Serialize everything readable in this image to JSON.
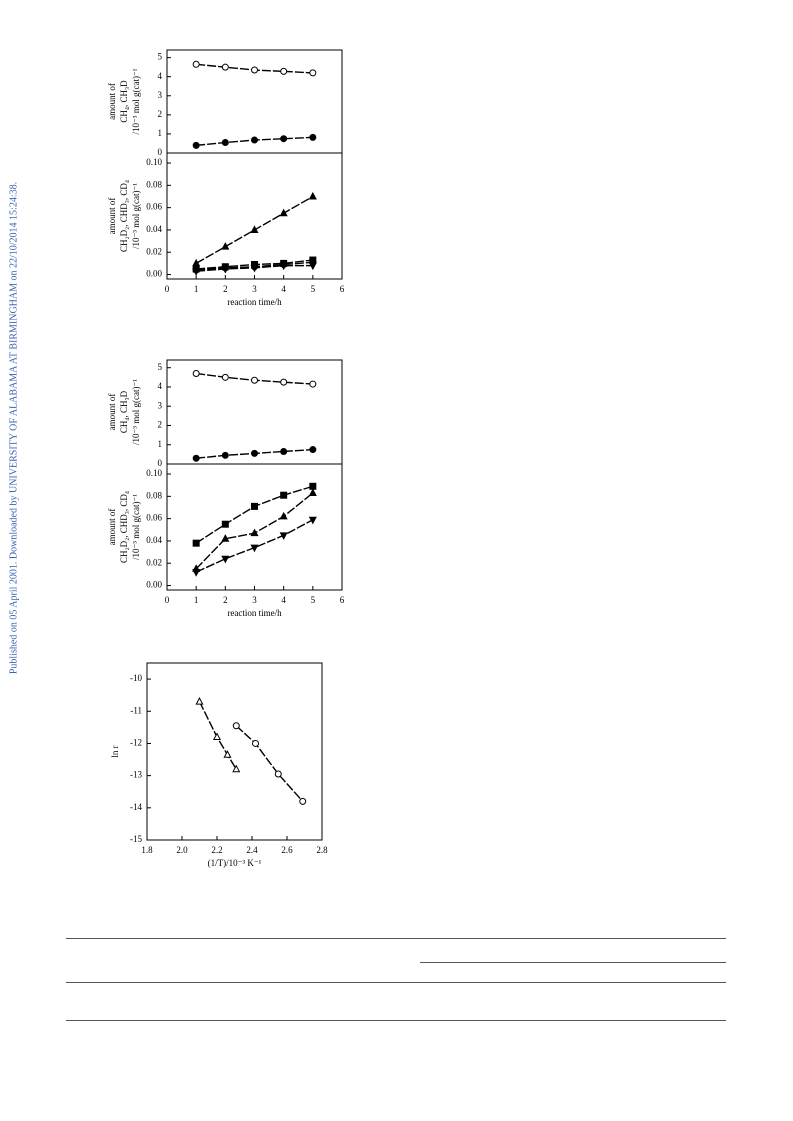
{
  "sidebar": "Published on 05 April 2001. Downloaded by UNIVERSITY OF ALABAMA AT BIRMINGHAM on 22/10/2014 15:24:38.",
  "chart_data": [
    {
      "type": "line",
      "ylabel": [
        "amount of",
        "CH₄, CH₃D",
        "/10⁻³ mol g(cat)⁻¹"
      ],
      "x": [
        1,
        2,
        3,
        4,
        5
      ],
      "xlim": [
        0,
        6
      ],
      "ylim": [
        0,
        5.4
      ],
      "yticks": [
        0,
        1,
        2,
        3,
        4,
        5
      ],
      "series": [
        {
          "marker": "open-circle",
          "color": "#000000",
          "values": [
            4.65,
            4.5,
            4.35,
            4.28,
            4.2
          ]
        },
        {
          "marker": "filled-circle",
          "color": "#000000",
          "values": [
            0.4,
            0.55,
            0.68,
            0.75,
            0.82
          ]
        }
      ]
    },
    {
      "type": "line",
      "ylabel": [
        "amount of",
        "CH₂D₂, CHD₃, CD₄",
        "/10⁻³ mol g(cat)⁻¹"
      ],
      "xlabel": "reaction time/h",
      "x": [
        1,
        2,
        3,
        4,
        5
      ],
      "xlim": [
        0,
        6
      ],
      "xticks": [
        0,
        1,
        2,
        3,
        4,
        5,
        6
      ],
      "ylim": [
        -0.004,
        0.109
      ],
      "yticks": [
        {
          "value": 0,
          "label": "0.00"
        },
        0.02,
        0.04,
        0.06,
        0.08,
        {
          "value": 0.1,
          "label": "0.10"
        }
      ],
      "series": [
        {
          "marker": "filled-triangle-up",
          "color": "#000000",
          "values": [
            0.01,
            0.025,
            0.04,
            0.055,
            0.07
          ]
        },
        {
          "marker": "filled-square",
          "color": "#000000",
          "values": [
            0.005,
            0.007,
            0.009,
            0.01,
            0.013
          ]
        },
        {
          "marker": "filled-circle",
          "color": "#000000",
          "values": [
            0.004,
            0.006,
            0.007,
            0.009,
            0.011
          ]
        },
        {
          "marker": "filled-triangle-down",
          "color": "#000000",
          "values": [
            0.003,
            0.005,
            0.006,
            0.008,
            0.008
          ]
        }
      ]
    },
    {
      "type": "line",
      "ylabel": [
        "amount of",
        "CH₄, CH₃D",
        "/10⁻³ mol g(cat)⁻¹"
      ],
      "x": [
        1,
        2,
        3,
        4,
        5
      ],
      "xlim": [
        0,
        6
      ],
      "ylim": [
        0,
        5.4
      ],
      "yticks": [
        0,
        1,
        2,
        3,
        4,
        5
      ],
      "series": [
        {
          "marker": "open-circle",
          "color": "#000000",
          "values": [
            4.7,
            4.5,
            4.35,
            4.25,
            4.15
          ]
        },
        {
          "marker": "filled-circle",
          "color": "#000000",
          "values": [
            0.3,
            0.45,
            0.55,
            0.65,
            0.75
          ]
        }
      ]
    },
    {
      "type": "line",
      "ylabel": [
        "amount of",
        "CH₂D₂, CHD₃, CD₄",
        "/10⁻³ mol g(cat)⁻¹"
      ],
      "xlabel": "reaction time/h",
      "x": [
        1,
        2,
        3,
        4,
        5
      ],
      "xlim": [
        0,
        6
      ],
      "xticks": [
        0,
        1,
        2,
        3,
        4,
        5,
        6
      ],
      "ylim": [
        -0.004,
        0.109
      ],
      "yticks": [
        {
          "value": 0,
          "label": "0.00"
        },
        0.02,
        0.04,
        0.06,
        0.08,
        {
          "value": 0.1,
          "label": "0.10"
        }
      ],
      "series": [
        {
          "marker": "filled-square",
          "color": "#000000",
          "values": [
            0.038,
            0.055,
            0.071,
            0.081,
            0.089
          ]
        },
        {
          "marker": "filled-triangle-up",
          "color": "#000000",
          "values": [
            0.015,
            0.042,
            0.047,
            0.062,
            0.083
          ]
        },
        {
          "marker": "filled-triangle-down",
          "color": "#000000",
          "values": [
            0.012,
            0.024,
            0.034,
            0.045,
            0.059
          ]
        }
      ]
    },
    {
      "type": "scatter",
      "ylabel": [
        "ln r"
      ],
      "xlabel": "(1/T)/10⁻³ K⁻¹",
      "xlim": [
        1.8,
        2.8
      ],
      "xticks": [
        1.8,
        {
          "value": 2,
          "label": "2.0"
        },
        2.2,
        2.4,
        2.6,
        2.8
      ],
      "ylim": [
        -15,
        -9.5
      ],
      "yticks": [
        -10,
        -11,
        -12,
        -13,
        -14,
        -15
      ],
      "series": [
        {
          "marker": "open-triangle-up",
          "color": "#000000",
          "x": [
            2.1,
            2.2,
            2.26,
            2.31
          ],
          "values": [
            -10.7,
            -11.8,
            -12.35,
            -12.8
          ]
        },
        {
          "marker": "open-circle",
          "color": "#000000",
          "x": [
            2.31,
            2.42,
            2.55,
            2.69
          ],
          "values": [
            -11.45,
            -12.0,
            -12.95,
            -13.8
          ]
        }
      ]
    }
  ]
}
